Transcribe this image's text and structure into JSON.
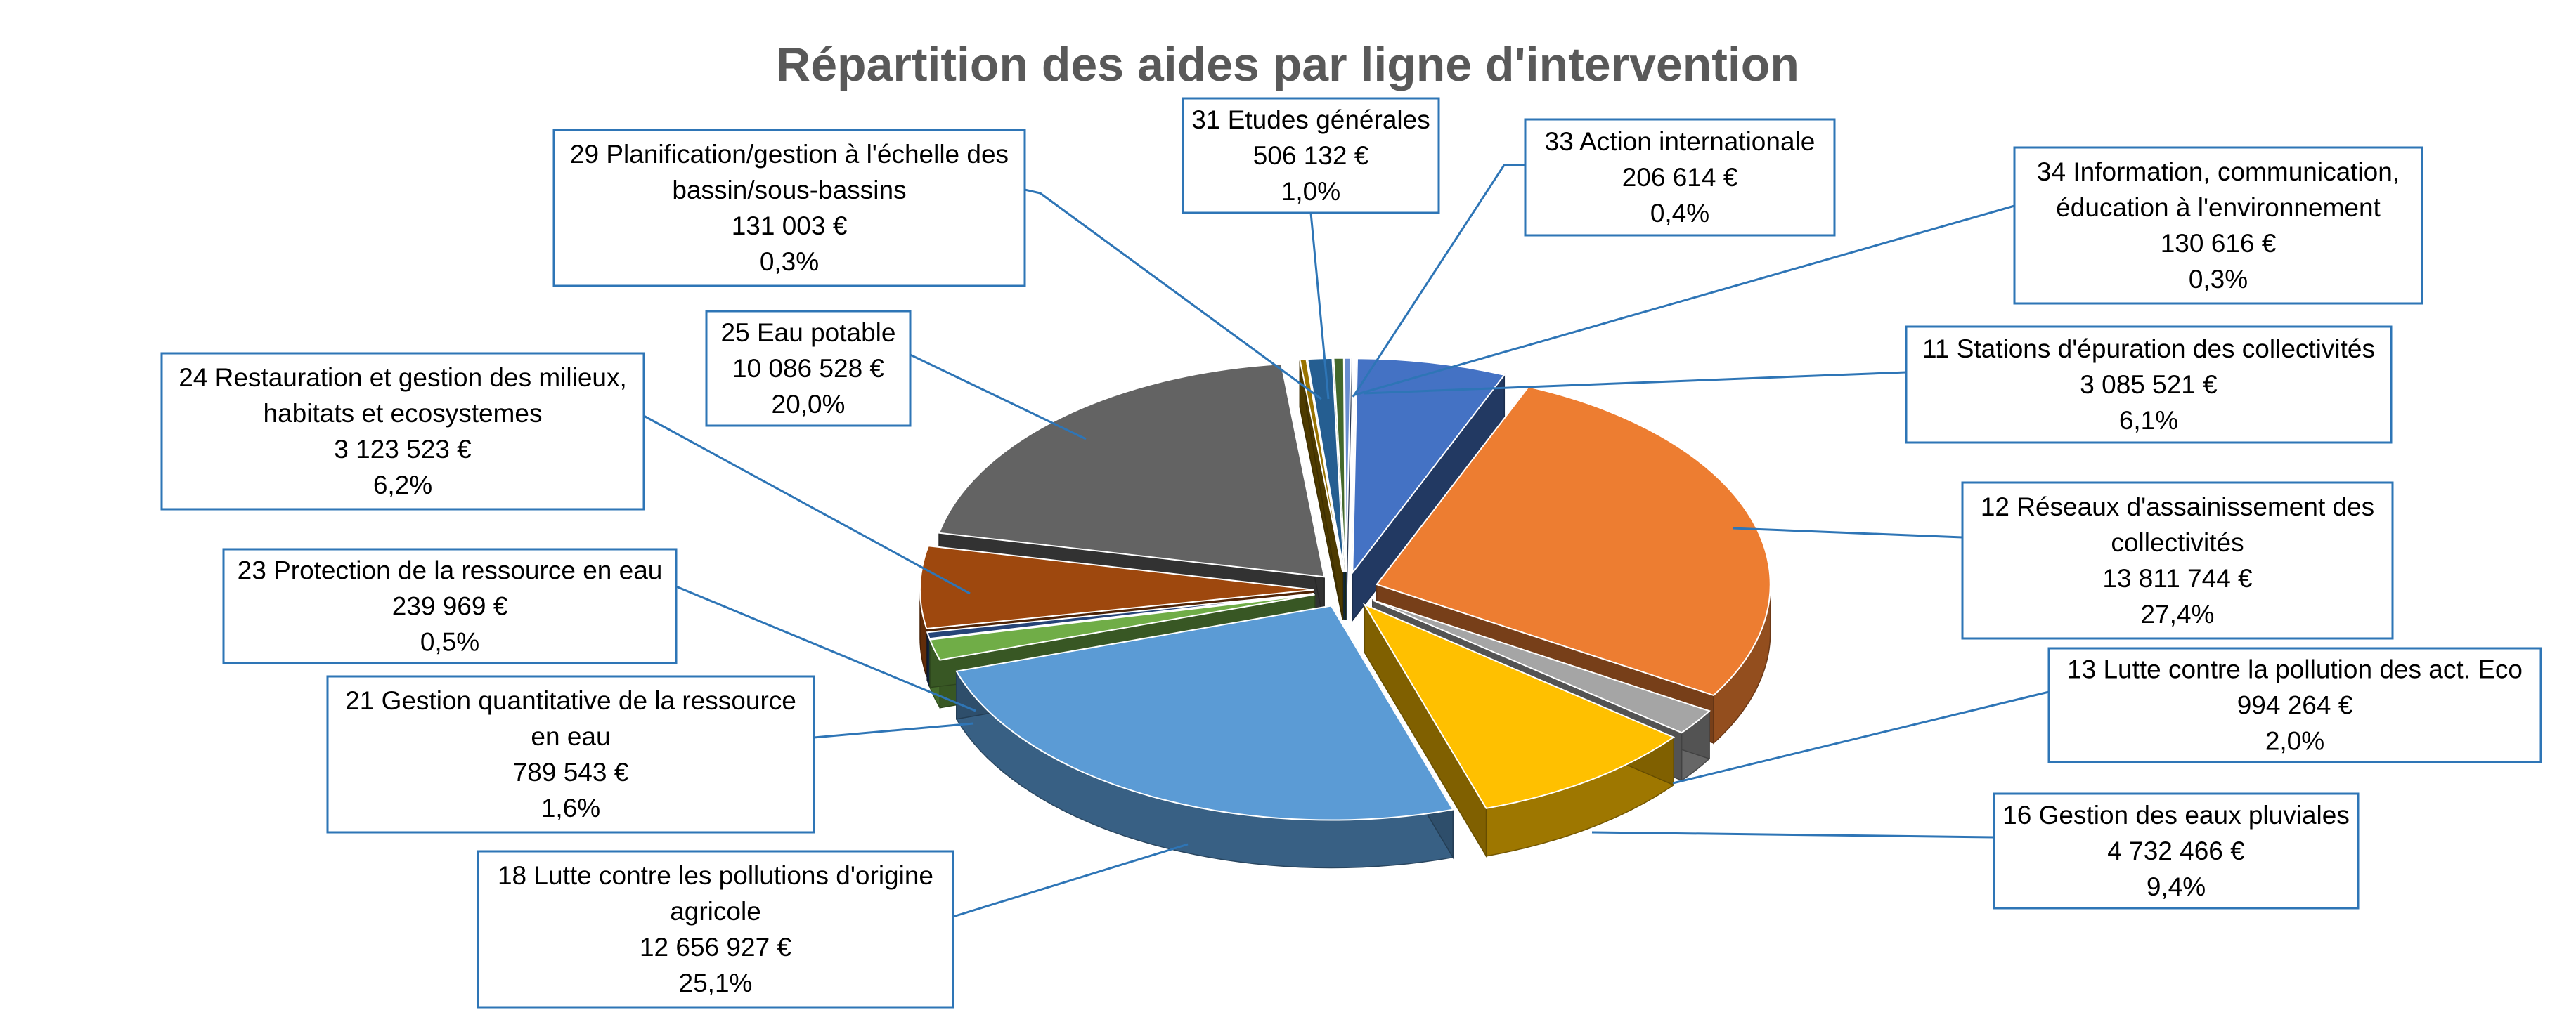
{
  "chart_data": {
    "type": "pie",
    "style": "3d-exploded",
    "title": "Répartition des aides par ligne d'intervention",
    "legend": "none",
    "slices": [
      {
        "lines": [
          "11 Stations d'épuration des collectivités"
        ],
        "value_label": "3 085 521 €",
        "percent_label": "6,1%",
        "value": 3085521,
        "percent": 6.1,
        "color": "#4472c4"
      },
      {
        "lines": [
          "12 Réseaux d'assainissement des",
          "collectivités"
        ],
        "value_label": "13 811 744 €",
        "percent_label": "27,4%",
        "value": 13811744,
        "percent": 27.4,
        "color": "#ed7d31"
      },
      {
        "lines": [
          "13 Lutte contre la pollution des act. Eco"
        ],
        "value_label": "994 264 €",
        "percent_label": "2,0%",
        "value": 994264,
        "percent": 2.0,
        "color": "#a5a5a5"
      },
      {
        "lines": [
          "16 Gestion des eaux pluviales"
        ],
        "value_label": "4 732 466 €",
        "percent_label": "9,4%",
        "value": 4732466,
        "percent": 9.4,
        "color": "#ffc000"
      },
      {
        "lines": [
          "18 Lutte contre les pollutions d'origine",
          "agricole"
        ],
        "value_label": "12 656 927 €",
        "percent_label": "25,1%",
        "value": 12656927,
        "percent": 25.1,
        "color": "#5b9bd5"
      },
      {
        "lines": [
          "21 Gestion quantitative de la ressource",
          "en eau"
        ],
        "value_label": "789 543 €",
        "percent_label": "1,6%",
        "value": 789543,
        "percent": 1.6,
        "color": "#70ad47"
      },
      {
        "lines": [
          "23 Protection de la ressource en eau"
        ],
        "value_label": "239 969 €",
        "percent_label": "0,5%",
        "value": 239969,
        "percent": 0.5,
        "color": "#264478"
      },
      {
        "lines": [
          "24 Restauration et gestion des milieux,",
          "habitats et ecosystemes"
        ],
        "value_label": "3 123 523 €",
        "percent_label": "6,2%",
        "value": 3123523,
        "percent": 6.2,
        "color": "#9e480e"
      },
      {
        "lines": [
          "25 Eau potable"
        ],
        "value_label": "10 086 528 €",
        "percent_label": "20,0%",
        "value": 10086528,
        "percent": 20.0,
        "color": "#636363"
      },
      {
        "lines": [
          "29 Planification/gestion à l'échelle des",
          "bassin/sous-bassins"
        ],
        "value_label": "131 003 €",
        "percent_label": "0,3%",
        "value": 131003,
        "percent": 0.3,
        "color": "#997300"
      },
      {
        "lines": [
          "31 Etudes générales"
        ],
        "value_label": "506 132 €",
        "percent_label": "1,0%",
        "value": 506132,
        "percent": 1.0,
        "color": "#255e91"
      },
      {
        "lines": [
          "33 Action internationale"
        ],
        "value_label": "206 614 €",
        "percent_label": "0,4%",
        "value": 206614,
        "percent": 0.4,
        "color": "#43682b"
      },
      {
        "lines": [
          "34 Information, communication,",
          "éducation à l'environnement"
        ],
        "value_label": "130 616 €",
        "percent_label": "0,3%",
        "value": 130616,
        "percent": 0.3,
        "color": "#698ed0"
      }
    ]
  }
}
